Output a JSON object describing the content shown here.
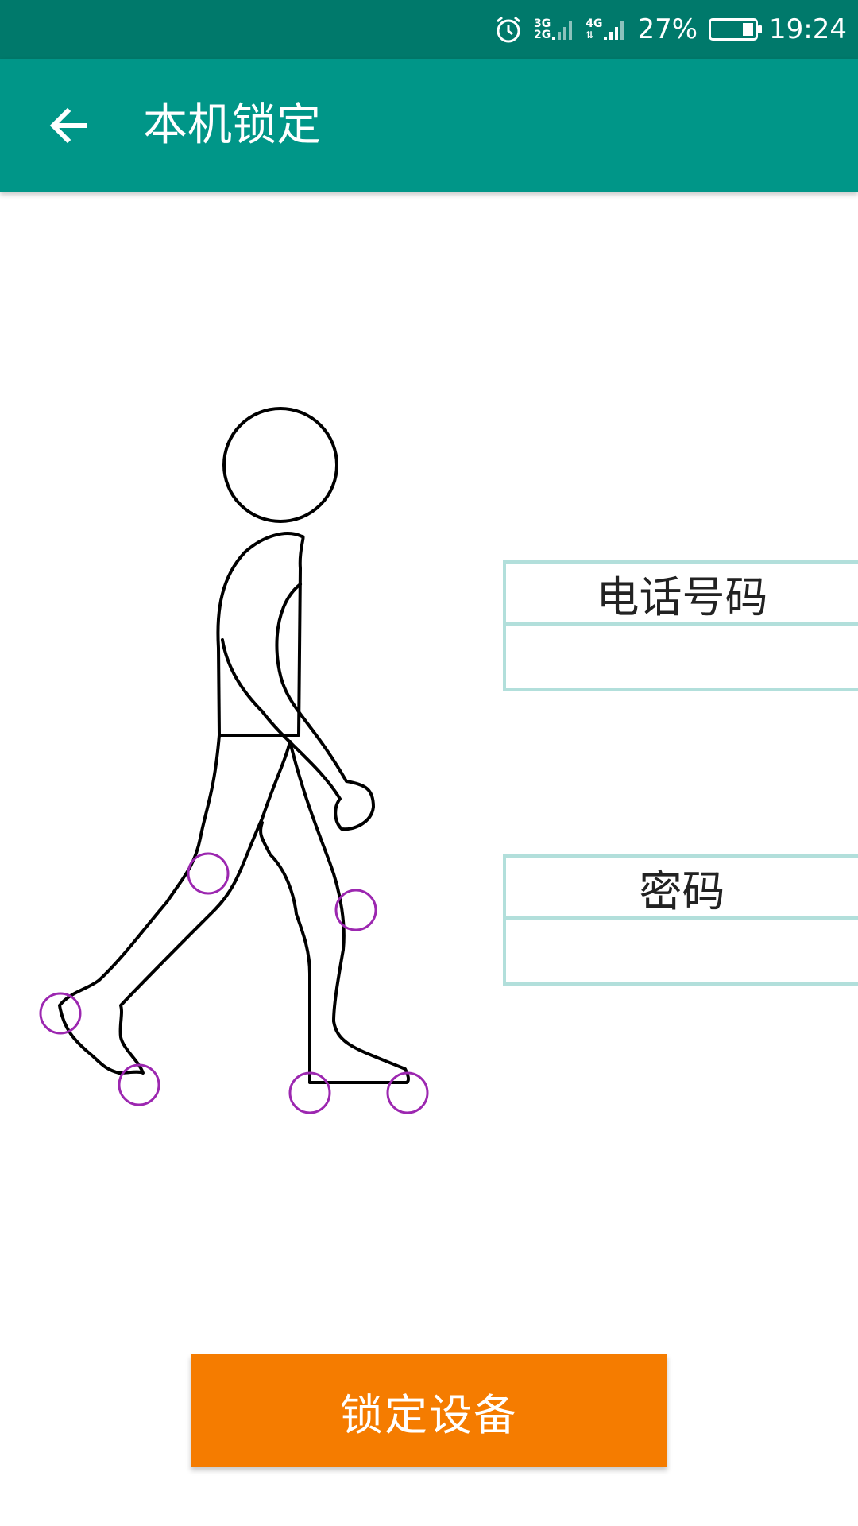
{
  "status_bar": {
    "network_3g": "3G",
    "network_2g": "2G",
    "network_4g": "4G",
    "battery_percent": "27%",
    "battery_level": 0.27,
    "time": "19:24",
    "icons": [
      "alarm-icon",
      "signal-icon",
      "signal-icon",
      "battery-icon"
    ]
  },
  "app_bar": {
    "title": "本机锁定",
    "back_icon": "arrow-left-icon",
    "background": "#009688"
  },
  "form": {
    "phone_label": "电话号码",
    "phone_value": "",
    "password_label": "密码",
    "password_value": ""
  },
  "figure": {
    "icon": "walking-person-icon",
    "marker_color": "#9c27b0"
  },
  "lock_button": {
    "label": "锁定设备",
    "color": "#f57c00"
  }
}
